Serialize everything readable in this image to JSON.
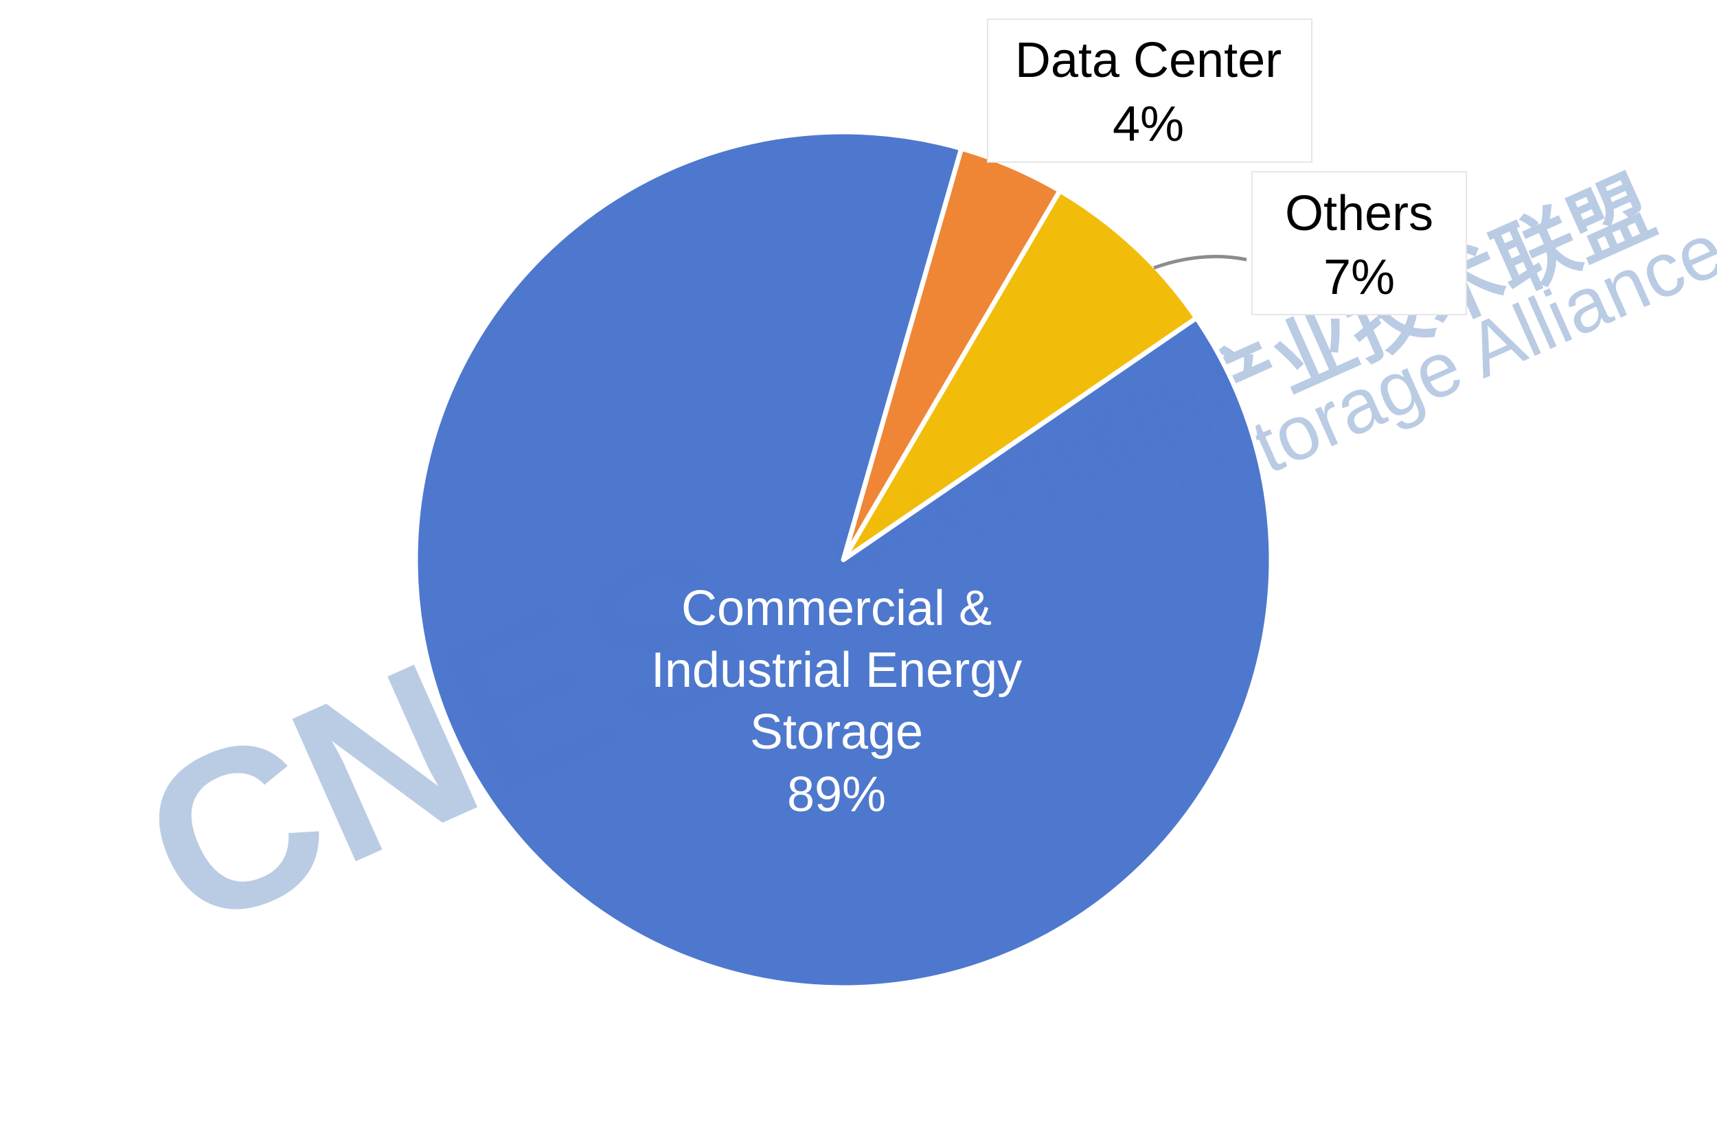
{
  "chart_data": {
    "type": "pie",
    "slices": [
      {
        "label": "Commercial & Industrial Energy Storage",
        "label_lines": [
          "Commercial &",
          "Industrial Energy",
          "Storage"
        ],
        "value_label": "89%",
        "value": 89,
        "color": "#4874CB"
      },
      {
        "label": "Data Center",
        "label_lines": [
          "Data Center"
        ],
        "value_label": "4%",
        "value": 4,
        "color": "#EE822F"
      },
      {
        "label": "Others",
        "label_lines": [
          "Others"
        ],
        "value_label": "7%",
        "value": 7,
        "color": "#F2BA02"
      }
    ],
    "legend": "none",
    "data_labels": "category and percentage",
    "title": ""
  },
  "watermark": {
    "logo_text": "CNES",
    "cn_text": "中关村储能产业技术联盟",
    "en_text": "China Energy Storage Alliance",
    "color": "#A9BEDE"
  }
}
